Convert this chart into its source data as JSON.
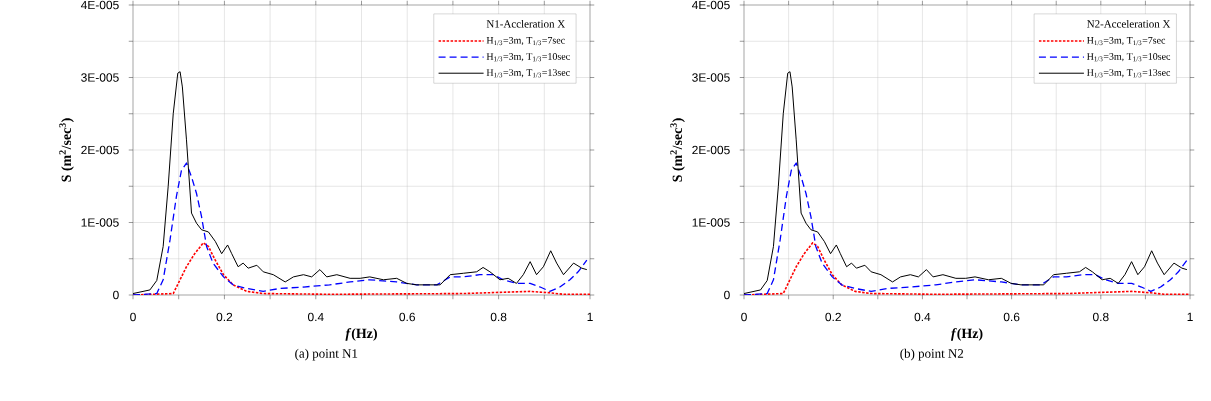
{
  "chart_data": [
    {
      "type": "line",
      "title": "(a)  point  N1",
      "xlabel": "*f*(Hz)",
      "ylabel": "S (m$^{2}$/sec$^{3}$)",
      "legend_title": "N1-Accleration X",
      "legend": "top right",
      "grid": true,
      "xlim": [
        0,
        1
      ],
      "ylim": [
        0,
        4e-05
      ],
      "xticks": [
        0,
        {
          "value": 0.1,
          "label": null
        },
        0.2,
        {
          "value": 0.3,
          "label": null
        },
        0.4,
        {
          "value": 0.5,
          "label": null
        },
        0.6,
        {
          "value": 0.7,
          "label": null
        },
        0.8,
        {
          "value": 0.9,
          "label": null
        },
        1
      ],
      "yticks": [
        0,
        {
          "value": 5e-06,
          "label": null
        },
        {
          "value": 1e-05,
          "label": "1E-005"
        },
        {
          "value": 1.5e-05,
          "label": null
        },
        {
          "value": 2e-05,
          "label": "2E-005"
        },
        {
          "value": 2.5e-05,
          "label": null
        },
        {
          "value": 3e-05,
          "label": "3E-005"
        },
        {
          "value": 3.5e-05,
          "label": null
        },
        {
          "value": 4e-05,
          "label": "4E-005"
        }
      ],
      "series": [
        {
          "name": "H$_{1/3}$=3m, T$_{1/3}$=7sec",
          "color": "#ff0000",
          "line_style": "dotted",
          "x": [
            0,
            0.088,
            0.099,
            0.117,
            0.135,
            0.154,
            0.165,
            0.18,
            0.198,
            0.219,
            0.249,
            0.285,
            0.43,
            0.723,
            0.869,
            0.912,
            0.942,
            1.0
          ],
          "values": [
            0,
            2e-07,
            1.6e-06,
            3.9e-06,
            5.7e-06,
            7.2e-06,
            6.7e-06,
            4.8e-06,
            2.8e-06,
            1.4e-06,
            5e-07,
            2e-07,
            1e-07,
            2e-07,
            5e-07,
            3e-07,
            1e-07,
            1e-07
          ]
        },
        {
          "name": "H$_{1/3}$=3m, T$_{1/3}$=10sec",
          "color": "#0000ff",
          "line_style": "dashed",
          "x": [
            0,
            0.052,
            0.066,
            0.081,
            0.095,
            0.106,
            0.117,
            0.128,
            0.139,
            0.15,
            0.161,
            0.175,
            0.198,
            0.219,
            0.249,
            0.285,
            0.321,
            0.373,
            0.43,
            0.475,
            0.518,
            0.577,
            0.621,
            0.665,
            0.694,
            0.723,
            0.759,
            0.788,
            0.81,
            0.839,
            0.869,
            0.891,
            0.912,
            0.934,
            0.956,
            0.974,
            0.993
          ],
          "values": [
            0,
            2e-07,
            2.1e-06,
            7.6e-06,
            1.36e-05,
            1.72e-05,
            1.82e-05,
            1.63e-05,
            1.4e-05,
            1.08e-05,
            6.7e-06,
            4.4e-06,
            2.5e-06,
            1.4e-06,
            9e-07,
            5e-07,
            9e-07,
            1.1e-06,
            1.4e-06,
            1.8e-06,
            2.1e-06,
            1.8e-06,
            1.4e-06,
            1.4e-06,
            2.5e-06,
            2.5e-06,
            2.8e-06,
            2.8e-06,
            2.1e-06,
            1.6e-06,
            1.6e-06,
            1.1e-06,
            5e-07,
            1.1e-06,
            2.1e-06,
            3.2e-06,
            4.8e-06
          ]
        },
        {
          "name": "H$_{1/3}$=3m, T$_{1/3}$=13sec",
          "color": "#000000",
          "line_style": "solid",
          "x": [
            0,
            0.037,
            0.052,
            0.066,
            0.077,
            0.088,
            0.098,
            0.103,
            0.108,
            0.117,
            0.128,
            0.139,
            0.15,
            0.165,
            0.18,
            0.194,
            0.207,
            0.216,
            0.23,
            0.241,
            0.252,
            0.271,
            0.285,
            0.307,
            0.333,
            0.351,
            0.373,
            0.391,
            0.409,
            0.424,
            0.446,
            0.475,
            0.497,
            0.518,
            0.548,
            0.577,
            0.599,
            0.621,
            0.672,
            0.694,
            0.723,
            0.752,
            0.766,
            0.781,
            0.803,
            0.821,
            0.839,
            0.854,
            0.869,
            0.883,
            0.898,
            0.914,
            0.927,
            0.942,
            0.964,
            0.982,
            0.993
          ],
          "values": [
            2e-07,
            7e-07,
            2e-06,
            6.7e-06,
            1.5e-05,
            2.5e-05,
            3.06e-05,
            3.08e-05,
            2.87e-05,
            2.14e-05,
            1.13e-05,
            9.9e-06,
            9e-06,
            8.7e-06,
            7.4e-06,
            5.7e-06,
            6.9e-06,
            5.7e-06,
            3.9e-06,
            4.4e-06,
            3.7e-06,
            4.1e-06,
            3.2e-06,
            2.8e-06,
            1.8e-06,
            2.5e-06,
            2.8e-06,
            2.5e-06,
            3.5e-06,
            2.5e-06,
            2.8e-06,
            2.3e-06,
            2.3e-06,
            2.5e-06,
            2.1e-06,
            2.3e-06,
            1.6e-06,
            1.4e-06,
            1.4e-06,
            2.8e-06,
            3e-06,
            3.2e-06,
            3.8e-06,
            3.2e-06,
            2.1e-06,
            2.3e-06,
            1.6e-06,
            2.8e-06,
            4.6e-06,
            2.8e-06,
            3.9e-06,
            6.1e-06,
            4.4e-06,
            2.8e-06,
            4.4e-06,
            3.7e-06,
            3.5e-06
          ]
        }
      ]
    },
    {
      "type": "line",
      "title": "(b)  point  N2",
      "xlabel": "*f*(Hz)",
      "ylabel": "S (m$^{2}$/sec$^{3}$)",
      "legend_title": "N2-Acceleration X",
      "legend": "top right",
      "grid": true,
      "xlim": [
        0,
        1
      ],
      "ylim": [
        0,
        4e-05
      ],
      "xticks": [
        0,
        {
          "value": 0.1,
          "label": null
        },
        0.2,
        {
          "value": 0.3,
          "label": null
        },
        0.4,
        {
          "value": 0.5,
          "label": null
        },
        0.6,
        {
          "value": 0.7,
          "label": null
        },
        0.8,
        {
          "value": 0.9,
          "label": null
        },
        1
      ],
      "yticks": [
        0,
        {
          "value": 5e-06,
          "label": null
        },
        {
          "value": 1e-05,
          "label": "1E-005"
        },
        {
          "value": 1.5e-05,
          "label": null
        },
        {
          "value": 2e-05,
          "label": "2E-005"
        },
        {
          "value": 2.5e-05,
          "label": null
        },
        {
          "value": 3e-05,
          "label": "3E-005"
        },
        {
          "value": 3.5e-05,
          "label": null
        },
        {
          "value": 4e-05,
          "label": "4E-005"
        }
      ],
      "series": [
        {
          "name": "H$_{1/3}$=3m, T$_{1/3}$=7sec",
          "color": "#ff0000",
          "line_style": "dotted",
          "x": [
            0,
            0.088,
            0.099,
            0.117,
            0.135,
            0.154,
            0.165,
            0.18,
            0.198,
            0.219,
            0.249,
            0.285,
            0.43,
            0.723,
            0.869,
            0.912,
            0.942,
            1.0
          ],
          "values": [
            0,
            2e-07,
            1.6e-06,
            3.9e-06,
            5.7e-06,
            7.2e-06,
            6.7e-06,
            4.8e-06,
            2.8e-06,
            1.4e-06,
            5e-07,
            2e-07,
            1e-07,
            2e-07,
            5e-07,
            3e-07,
            1e-07,
            1e-07
          ]
        },
        {
          "name": "H$_{1/3}$=3m, T$_{1/3}$=10sec",
          "color": "#0000ff",
          "line_style": "dashed",
          "x": [
            0,
            0.052,
            0.066,
            0.081,
            0.095,
            0.106,
            0.117,
            0.128,
            0.139,
            0.15,
            0.161,
            0.175,
            0.198,
            0.219,
            0.249,
            0.285,
            0.321,
            0.373,
            0.43,
            0.475,
            0.518,
            0.577,
            0.621,
            0.665,
            0.694,
            0.723,
            0.759,
            0.788,
            0.81,
            0.839,
            0.869,
            0.891,
            0.912,
            0.934,
            0.956,
            0.974,
            0.993
          ],
          "values": [
            0,
            2e-07,
            2.1e-06,
            7.6e-06,
            1.36e-05,
            1.72e-05,
            1.82e-05,
            1.63e-05,
            1.4e-05,
            1.08e-05,
            6.7e-06,
            4.4e-06,
            2.5e-06,
            1.4e-06,
            9e-07,
            5e-07,
            9e-07,
            1.1e-06,
            1.4e-06,
            1.8e-06,
            2.1e-06,
            1.8e-06,
            1.4e-06,
            1.4e-06,
            2.5e-06,
            2.5e-06,
            2.8e-06,
            2.8e-06,
            2.1e-06,
            1.6e-06,
            1.6e-06,
            1.1e-06,
            5e-07,
            1.1e-06,
            2.1e-06,
            3.2e-06,
            4.8e-06
          ]
        },
        {
          "name": "H$_{1/3}$=3m, T$_{1/3}$=13sec",
          "color": "#000000",
          "line_style": "solid",
          "x": [
            0,
            0.037,
            0.052,
            0.066,
            0.077,
            0.088,
            0.098,
            0.103,
            0.108,
            0.117,
            0.128,
            0.139,
            0.15,
            0.165,
            0.18,
            0.194,
            0.207,
            0.216,
            0.23,
            0.241,
            0.252,
            0.271,
            0.285,
            0.307,
            0.333,
            0.351,
            0.373,
            0.391,
            0.409,
            0.424,
            0.446,
            0.475,
            0.497,
            0.518,
            0.548,
            0.577,
            0.599,
            0.621,
            0.672,
            0.694,
            0.723,
            0.752,
            0.766,
            0.781,
            0.803,
            0.821,
            0.839,
            0.854,
            0.869,
            0.883,
            0.898,
            0.914,
            0.927,
            0.942,
            0.964,
            0.982,
            0.993
          ],
          "values": [
            2e-07,
            7e-07,
            2e-06,
            6.7e-06,
            1.5e-05,
            2.5e-05,
            3.06e-05,
            3.08e-05,
            2.87e-05,
            2.14e-05,
            1.13e-05,
            9.9e-06,
            9e-06,
            8.7e-06,
            7.4e-06,
            5.7e-06,
            6.9e-06,
            5.7e-06,
            3.9e-06,
            4.4e-06,
            3.7e-06,
            4.1e-06,
            3.2e-06,
            2.8e-06,
            1.8e-06,
            2.5e-06,
            2.8e-06,
            2.5e-06,
            3.5e-06,
            2.5e-06,
            2.8e-06,
            2.3e-06,
            2.3e-06,
            2.5e-06,
            2.1e-06,
            2.3e-06,
            1.6e-06,
            1.4e-06,
            1.4e-06,
            2.8e-06,
            3e-06,
            3.2e-06,
            3.8e-06,
            3.2e-06,
            2.1e-06,
            2.3e-06,
            1.6e-06,
            2.8e-06,
            4.6e-06,
            2.8e-06,
            3.9e-06,
            6.1e-06,
            4.4e-06,
            2.8e-06,
            4.4e-06,
            3.7e-06,
            3.5e-06
          ]
        }
      ]
    }
  ]
}
